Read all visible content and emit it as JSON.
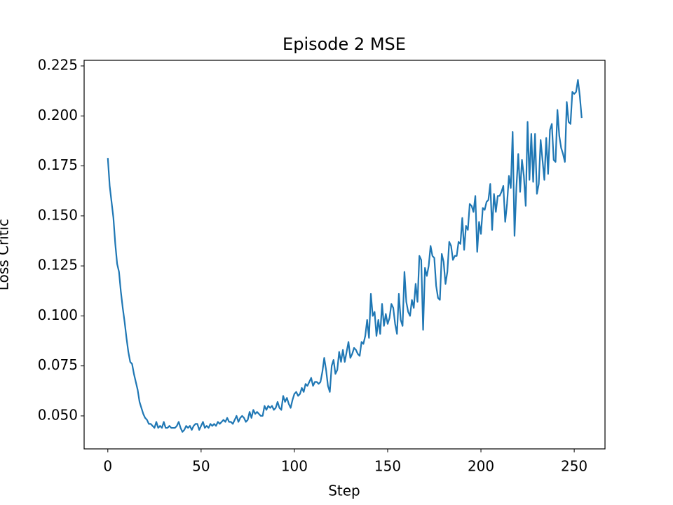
{
  "chart_data": {
    "type": "line",
    "title": "Episode 2 MSE",
    "x_label": "Step",
    "y_label": "Loss Critic",
    "x": [
      0,
      1,
      2,
      3,
      4,
      5,
      6,
      7,
      8,
      9,
      10,
      11,
      12,
      13,
      14,
      15,
      16,
      17,
      18,
      19,
      20,
      21,
      22,
      23,
      24,
      25,
      26,
      27,
      28,
      29,
      30,
      31,
      32,
      33,
      34,
      35,
      36,
      37,
      38,
      39,
      40,
      41,
      42,
      43,
      44,
      45,
      46,
      47,
      48,
      49,
      50,
      51,
      52,
      53,
      54,
      55,
      56,
      57,
      58,
      59,
      60,
      61,
      62,
      63,
      64,
      65,
      66,
      67,
      68,
      69,
      70,
      71,
      72,
      73,
      74,
      75,
      76,
      77,
      78,
      79,
      80,
      81,
      82,
      83,
      84,
      85,
      86,
      87,
      88,
      89,
      90,
      91,
      92,
      93,
      94,
      95,
      96,
      97,
      98,
      99,
      100,
      101,
      102,
      103,
      104,
      105,
      106,
      107,
      108,
      109,
      110,
      111,
      112,
      113,
      114,
      115,
      116,
      117,
      118,
      119,
      120,
      121,
      122,
      123,
      124,
      125,
      126,
      127,
      128,
      129,
      130,
      131,
      132,
      133,
      134,
      135,
      136,
      137,
      138,
      139,
      140,
      141,
      142,
      143,
      144,
      145,
      146,
      147,
      148,
      149,
      150,
      151,
      152,
      153,
      154,
      155,
      156,
      157,
      158,
      159,
      160,
      161,
      162,
      163,
      164,
      165,
      166,
      167,
      168,
      169,
      170,
      171,
      172,
      173,
      174,
      175,
      176,
      177,
      178,
      179,
      180,
      181,
      182,
      183,
      184,
      185,
      186,
      187,
      188,
      189,
      190,
      191,
      192,
      193,
      194,
      195,
      196,
      197,
      198,
      199,
      200,
      201,
      202,
      203,
      204,
      205,
      206,
      207,
      208,
      209,
      210,
      211,
      212,
      213,
      214,
      215,
      216,
      217,
      218,
      219,
      220,
      221,
      222,
      223,
      224,
      225,
      226,
      227,
      228,
      229,
      230,
      231,
      232,
      233,
      234,
      235,
      236,
      237,
      238,
      239,
      240,
      241,
      242,
      243,
      244,
      245,
      246,
      247,
      248,
      249,
      250,
      251,
      252,
      253,
      254
    ],
    "series": [
      {
        "name": "Loss Critic",
        "color": "#1f77b4",
        "values": [
          0.179,
          0.165,
          0.157,
          0.149,
          0.136,
          0.126,
          0.122,
          0.112,
          0.104,
          0.097,
          0.089,
          0.082,
          0.077,
          0.076,
          0.071,
          0.067,
          0.063,
          0.057,
          0.054,
          0.051,
          0.049,
          0.048,
          0.046,
          0.046,
          0.045,
          0.044,
          0.047,
          0.044,
          0.045,
          0.044,
          0.047,
          0.044,
          0.044,
          0.045,
          0.044,
          0.044,
          0.044,
          0.045,
          0.047,
          0.044,
          0.042,
          0.043,
          0.045,
          0.044,
          0.045,
          0.043,
          0.045,
          0.046,
          0.046,
          0.043,
          0.045,
          0.047,
          0.044,
          0.045,
          0.044,
          0.046,
          0.045,
          0.046,
          0.045,
          0.047,
          0.046,
          0.047,
          0.048,
          0.047,
          0.049,
          0.047,
          0.047,
          0.046,
          0.048,
          0.05,
          0.047,
          0.049,
          0.05,
          0.049,
          0.047,
          0.048,
          0.052,
          0.049,
          0.053,
          0.051,
          0.052,
          0.051,
          0.05,
          0.05,
          0.055,
          0.053,
          0.055,
          0.054,
          0.055,
          0.053,
          0.054,
          0.057,
          0.054,
          0.053,
          0.06,
          0.057,
          0.059,
          0.056,
          0.054,
          0.058,
          0.061,
          0.062,
          0.06,
          0.061,
          0.064,
          0.062,
          0.066,
          0.065,
          0.067,
          0.069,
          0.065,
          0.067,
          0.067,
          0.066,
          0.067,
          0.072,
          0.079,
          0.073,
          0.065,
          0.062,
          0.075,
          0.078,
          0.071,
          0.073,
          0.082,
          0.077,
          0.083,
          0.077,
          0.082,
          0.087,
          0.079,
          0.081,
          0.084,
          0.083,
          0.081,
          0.08,
          0.087,
          0.086,
          0.09,
          0.098,
          0.089,
          0.111,
          0.1,
          0.102,
          0.09,
          0.098,
          0.091,
          0.106,
          0.095,
          0.101,
          0.096,
          0.099,
          0.106,
          0.104,
          0.096,
          0.091,
          0.111,
          0.098,
          0.095,
          0.122,
          0.107,
          0.102,
          0.1,
          0.108,
          0.104,
          0.116,
          0.107,
          0.13,
          0.128,
          0.093,
          0.124,
          0.12,
          0.125,
          0.135,
          0.13,
          0.129,
          0.115,
          0.109,
          0.108,
          0.131,
          0.127,
          0.116,
          0.122,
          0.137,
          0.135,
          0.128,
          0.13,
          0.13,
          0.137,
          0.136,
          0.149,
          0.133,
          0.145,
          0.143,
          0.156,
          0.155,
          0.152,
          0.16,
          0.132,
          0.147,
          0.141,
          0.154,
          0.153,
          0.157,
          0.158,
          0.166,
          0.143,
          0.161,
          0.152,
          0.16,
          0.16,
          0.162,
          0.165,
          0.147,
          0.156,
          0.17,
          0.164,
          0.192,
          0.14,
          0.164,
          0.181,
          0.162,
          0.178,
          0.17,
          0.155,
          0.197,
          0.168,
          0.191,
          0.167,
          0.191,
          0.161,
          0.166,
          0.188,
          0.178,
          0.168,
          0.189,
          0.171,
          0.193,
          0.196,
          0.178,
          0.177,
          0.203,
          0.19,
          0.184,
          0.181,
          0.177,
          0.207,
          0.197,
          0.196,
          0.212,
          0.211,
          0.212,
          0.218,
          0.21,
          0.199
        ]
      }
    ],
    "xlim": [
      -12.7,
      266.5
    ],
    "ylim": [
      0.0335,
      0.2278
    ],
    "xticks": [
      0,
      50,
      100,
      150,
      200,
      250
    ],
    "yticks": [
      {
        "value": 0.05,
        "label": "0.050"
      },
      0.075,
      {
        "value": 0.1,
        "label": "0.100"
      },
      0.125,
      {
        "value": 0.15,
        "label": "0.150"
      },
      0.175,
      {
        "value": 0.2,
        "label": "0.200"
      },
      0.225
    ],
    "grid": false
  }
}
